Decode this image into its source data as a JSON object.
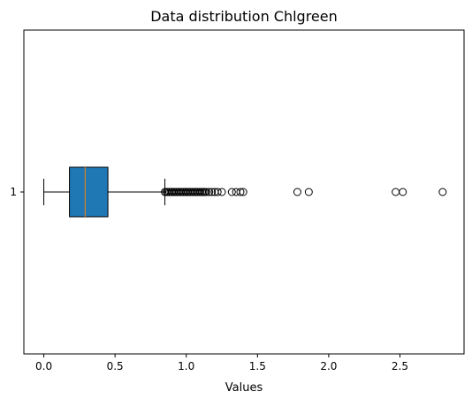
{
  "chart_data": {
    "type": "boxplot",
    "title": "Data distribution Chlgreen",
    "xlabel": "Values",
    "ylabel": "",
    "orientation": "horizontal",
    "xlim": [
      -0.14,
      2.95
    ],
    "xticks": [
      0.0,
      0.5,
      1.0,
      1.5,
      2.0,
      2.5
    ],
    "xtick_labels": [
      "0.0",
      "0.5",
      "1.0",
      "1.5",
      "2.0",
      "2.5"
    ],
    "ytick_labels": [
      "1"
    ],
    "grid": false,
    "colors": {
      "box_fill": "#1f77b4",
      "median": "#ff7f0e",
      "lines": "#000000"
    },
    "box": {
      "label": "1",
      "whisker_low": 0.0,
      "q1": 0.18,
      "median": 0.29,
      "q3": 0.45,
      "whisker_high": 0.85
    },
    "outliers": [
      0.85,
      0.86,
      0.87,
      0.88,
      0.89,
      0.9,
      0.91,
      0.92,
      0.93,
      0.94,
      0.95,
      0.96,
      0.97,
      0.98,
      0.99,
      1.0,
      1.01,
      1.02,
      1.03,
      1.04,
      1.05,
      1.06,
      1.07,
      1.08,
      1.09,
      1.1,
      1.11,
      1.12,
      1.13,
      1.14,
      1.16,
      1.18,
      1.2,
      1.22,
      1.25,
      1.32,
      1.35,
      1.38,
      1.4,
      1.78,
      1.86,
      2.47,
      2.52,
      2.8
    ]
  }
}
